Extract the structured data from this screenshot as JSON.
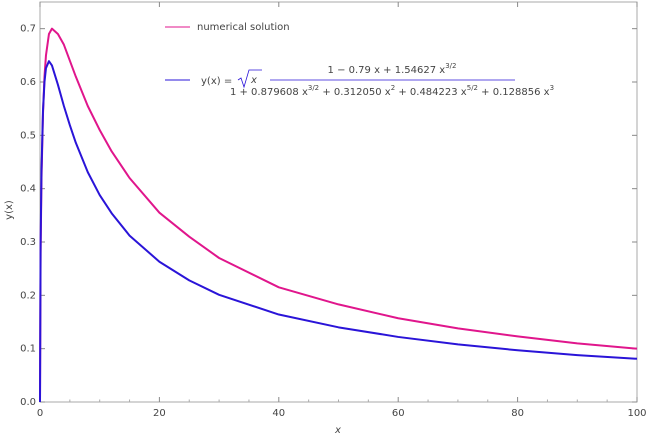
{
  "chart_data": {
    "type": "line",
    "xlabel": "x",
    "ylabel": "y(x)",
    "x": [
      0,
      0.1,
      0.25,
      0.5,
      0.75,
      1,
      1.5,
      2,
      3,
      4,
      5,
      6,
      8,
      10,
      12,
      15,
      20,
      25,
      30,
      40,
      50,
      60,
      70,
      80,
      90,
      100
    ],
    "series": [
      {
        "name": "numerical solution",
        "color": "#e0168c",
        "values": [
          0,
          0.28,
          0.42,
          0.54,
          0.61,
          0.65,
          0.69,
          0.7,
          0.69,
          0.67,
          0.64,
          0.61,
          0.555,
          0.51,
          0.47,
          0.42,
          0.355,
          0.31,
          0.27,
          0.215,
          0.183,
          0.157,
          0.138,
          0.123,
          0.11,
          0.1
        ]
      },
      {
        "color": "#2a14d8",
        "values": [
          0,
          0.297,
          0.434,
          0.546,
          0.6,
          0.626,
          0.639,
          0.631,
          0.595,
          0.555,
          0.519,
          0.486,
          0.431,
          0.388,
          0.354,
          0.312,
          0.263,
          0.228,
          0.201,
          0.164,
          0.14,
          0.122,
          0.108,
          0.097,
          0.088,
          0.081
        ]
      }
    ],
    "legend_formula": {
      "lhs": "y(x) =",
      "radicand": "x",
      "numerator": [
        {
          "text": "1 − 0.79 x + 1.54627 x"
        },
        {
          "sup": "3/2"
        }
      ],
      "denominator": [
        {
          "text": "1 + 0.879608 x"
        },
        {
          "sup": "3/2"
        },
        {
          "text": " + 0.312050 x"
        },
        {
          "sup": "2"
        },
        {
          "text": " + 0.484223 x"
        },
        {
          "sup": "5/2"
        },
        {
          "text": " + 0.128856 x"
        },
        {
          "sup": "3"
        }
      ]
    },
    "xlim": [
      0,
      100
    ],
    "ylim": [
      0,
      0.75
    ],
    "xticks": [
      0,
      20,
      40,
      60,
      80,
      100
    ],
    "yticks": [
      {
        "value": 0,
        "label": "0.0"
      },
      0.1,
      0.2,
      0.3,
      0.4,
      0.5,
      0.6,
      0.7
    ]
  }
}
